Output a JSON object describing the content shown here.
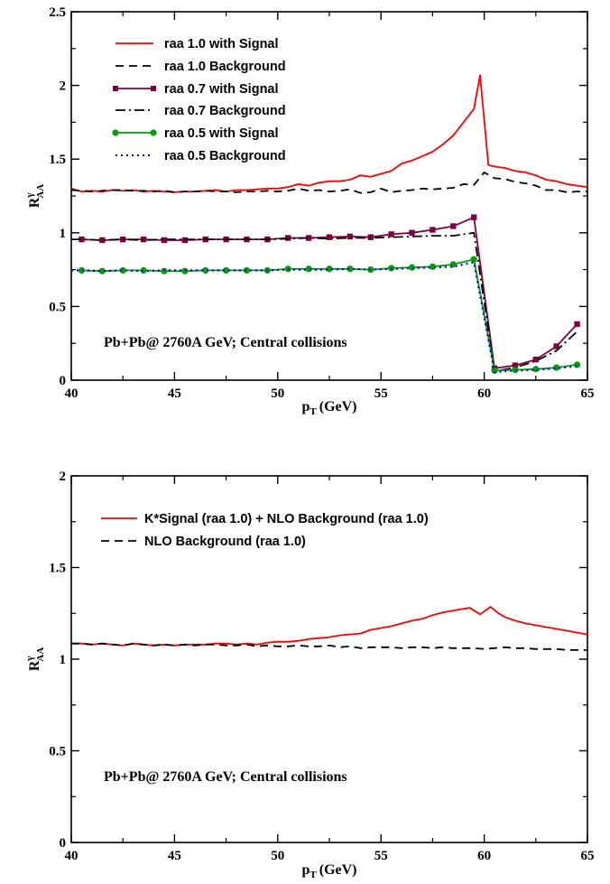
{
  "chart_data": [
    {
      "type": "line",
      "xlabel": "p",
      "xlabel_sub": "T",
      "xlabel_unit": "(GeV)",
      "ylabel": "R",
      "ylabel_sup": "γ",
      "ylabel_sub": "AA",
      "xlim": [
        40,
        65
      ],
      "ylim": [
        0,
        2.5
      ],
      "xticks": [
        40,
        45,
        50,
        55,
        60,
        65
      ],
      "xtick_labels": [
        "40",
        "45",
        "50",
        "55",
        "60",
        "65"
      ],
      "yticks": [
        0,
        0.5,
        1,
        1.5,
        2,
        2.5
      ],
      "ytick_labels": [
        "0",
        "0.5",
        "1",
        "1.5",
        "2",
        "2.5"
      ],
      "annotation": "Pb+Pb@ 2760A GeV; Central collisions",
      "legend_position": "top-left",
      "series": [
        {
          "name": "raa 1.0 with Signal",
          "color": "#ff0000",
          "dash": "solid",
          "marker": "none",
          "x": [
            40,
            40.5,
            41,
            41.5,
            42,
            42.5,
            43,
            43.5,
            44,
            44.5,
            45,
            45.5,
            46,
            46.5,
            47,
            47.5,
            48,
            48.5,
            49,
            49.5,
            50,
            50.5,
            51,
            51.5,
            52,
            52.5,
            53,
            53.5,
            54,
            54.5,
            55,
            55.5,
            56,
            56.5,
            57,
            57.5,
            58,
            58.5,
            59,
            59.5,
            59.8,
            60.2,
            60.5,
            61,
            61.5,
            62,
            62.5,
            63,
            63.5,
            64,
            64.5,
            65
          ],
          "y": [
            1.3,
            1.28,
            1.285,
            1.28,
            1.29,
            1.285,
            1.29,
            1.28,
            1.285,
            1.28,
            1.275,
            1.28,
            1.28,
            1.285,
            1.29,
            1.28,
            1.29,
            1.29,
            1.295,
            1.3,
            1.3,
            1.31,
            1.33,
            1.32,
            1.34,
            1.35,
            1.35,
            1.36,
            1.39,
            1.38,
            1.4,
            1.42,
            1.47,
            1.49,
            1.52,
            1.55,
            1.6,
            1.66,
            1.75,
            1.84,
            2.07,
            1.46,
            1.45,
            1.44,
            1.42,
            1.41,
            1.39,
            1.36,
            1.35,
            1.33,
            1.32,
            1.31
          ]
        },
        {
          "name": "raa 1.0 Background",
          "color": "#000000",
          "dash": "long",
          "marker": "none",
          "x": [
            40,
            40.5,
            41,
            41.5,
            42,
            42.5,
            43,
            43.5,
            44,
            44.5,
            45,
            45.5,
            46,
            46.5,
            47,
            47.5,
            48,
            48.5,
            49,
            49.5,
            50,
            50.5,
            51,
            51.5,
            52,
            52.5,
            53,
            53.5,
            54,
            54.5,
            55,
            55.5,
            56,
            56.5,
            57,
            57.5,
            58,
            58.5,
            59,
            59.5,
            60,
            60.5,
            61,
            61.5,
            62,
            62.5,
            63,
            63.5,
            64,
            64.5,
            65
          ],
          "y": [
            1.29,
            1.285,
            1.28,
            1.285,
            1.29,
            1.29,
            1.285,
            1.285,
            1.28,
            1.285,
            1.275,
            1.28,
            1.28,
            1.285,
            1.28,
            1.28,
            1.275,
            1.28,
            1.28,
            1.285,
            1.28,
            1.285,
            1.3,
            1.285,
            1.29,
            1.28,
            1.285,
            1.295,
            1.27,
            1.275,
            1.3,
            1.275,
            1.285,
            1.29,
            1.3,
            1.295,
            1.3,
            1.305,
            1.33,
            1.325,
            1.41,
            1.37,
            1.365,
            1.345,
            1.335,
            1.32,
            1.29,
            1.29,
            1.275,
            1.28,
            1.28
          ]
        },
        {
          "name": "raa 0.7 with Signal",
          "color": "#800040",
          "dash": "solid",
          "marker": "square",
          "x": [
            40.5,
            41.5,
            42.5,
            43.5,
            44.5,
            45.5,
            46.5,
            47.5,
            48.5,
            49.5,
            50.5,
            51.5,
            52.5,
            53.5,
            54.5,
            55.5,
            56.5,
            57.5,
            58.5,
            59.5,
            60.5,
            61.5,
            62.5,
            63.5,
            64.5
          ],
          "y": [
            0.955,
            0.95,
            0.955,
            0.955,
            0.95,
            0.95,
            0.955,
            0.955,
            0.955,
            0.955,
            0.965,
            0.965,
            0.97,
            0.975,
            0.97,
            0.99,
            1.0,
            1.02,
            1.045,
            1.105,
            0.08,
            0.1,
            0.14,
            0.23,
            0.38
          ]
        },
        {
          "name": "raa 0.7 Background",
          "color": "#000000",
          "dash": "dashdot",
          "marker": "none",
          "x": [
            40,
            40.5,
            41.5,
            42.5,
            43.5,
            44.5,
            45.5,
            46.5,
            47.5,
            48.5,
            49.5,
            50.5,
            51.5,
            52.5,
            53.5,
            54.5,
            55.5,
            56.5,
            57.5,
            58.5,
            59.5,
            60.5,
            61.5,
            62.5,
            63.5,
            64.5
          ],
          "y": [
            0.955,
            0.955,
            0.95,
            0.955,
            0.95,
            0.955,
            0.955,
            0.955,
            0.955,
            0.955,
            0.955,
            0.96,
            0.965,
            0.96,
            0.965,
            0.965,
            0.97,
            0.975,
            0.98,
            0.98,
            1.0,
            0.06,
            0.085,
            0.13,
            0.2,
            0.33
          ]
        },
        {
          "name": "raa 0.5 with Signal",
          "color": "#00a000",
          "dash": "solid",
          "marker": "circle",
          "x": [
            40.5,
            41.5,
            42.5,
            43.5,
            44.5,
            45.5,
            46.5,
            47.5,
            48.5,
            49.5,
            50.5,
            51.5,
            52.5,
            53.5,
            54.5,
            55.5,
            56.5,
            57.5,
            58.5,
            59.5,
            60.5,
            61.5,
            62.5,
            63.5,
            64.5
          ],
          "y": [
            0.745,
            0.74,
            0.745,
            0.745,
            0.74,
            0.74,
            0.745,
            0.745,
            0.745,
            0.745,
            0.755,
            0.755,
            0.755,
            0.755,
            0.75,
            0.76,
            0.765,
            0.77,
            0.785,
            0.82,
            0.065,
            0.07,
            0.075,
            0.085,
            0.105
          ]
        },
        {
          "name": "raa 0.5 Background",
          "color": "#0000ff",
          "dash": "dotted",
          "marker": "none",
          "x": [
            40,
            40.5,
            41.5,
            42.5,
            43.5,
            44.5,
            45.5,
            46.5,
            47.5,
            48.5,
            49.5,
            50.5,
            51.5,
            52.5,
            53.5,
            54.5,
            55.5,
            56.5,
            57.5,
            58.5,
            59.5,
            60.5,
            61.5,
            62.5,
            63.5,
            64.5
          ],
          "y": [
            0.745,
            0.745,
            0.74,
            0.745,
            0.74,
            0.745,
            0.745,
            0.745,
            0.745,
            0.745,
            0.745,
            0.75,
            0.75,
            0.75,
            0.755,
            0.75,
            0.755,
            0.76,
            0.765,
            0.77,
            0.8,
            0.055,
            0.065,
            0.07,
            0.08,
            0.095
          ]
        }
      ]
    },
    {
      "type": "line",
      "xlabel": "p",
      "xlabel_sub": "T",
      "xlabel_unit": "(GeV)",
      "ylabel": "R",
      "ylabel_sup": "γ",
      "ylabel_sub": "AA",
      "xlim": [
        40,
        65
      ],
      "ylim": [
        0,
        2
      ],
      "xticks": [
        40,
        45,
        50,
        55,
        60,
        65
      ],
      "xtick_labels": [
        "40",
        "45",
        "50",
        "55",
        "60",
        "65"
      ],
      "yticks": [
        0,
        0.5,
        1,
        1.5,
        2
      ],
      "ytick_labels": [
        "0",
        "0.5",
        "1",
        "1.5",
        "2"
      ],
      "annotation": "Pb+Pb@ 2760A GeV; Central collisions",
      "legend_position": "top-left",
      "series": [
        {
          "name": "K*Signal (raa 1.0) + NLO Background (raa 1.0)",
          "color": "#ff0000",
          "dash": "solid",
          "marker": "none",
          "x": [
            40,
            40.5,
            41,
            41.5,
            42,
            42.5,
            43,
            43.5,
            44,
            44.5,
            45,
            45.5,
            46,
            46.5,
            47,
            47.5,
            48,
            48.5,
            49,
            49.5,
            50,
            50.5,
            51,
            51.5,
            52,
            52.5,
            53,
            53.5,
            54,
            54.5,
            55,
            55.5,
            56,
            56.5,
            57,
            57.5,
            58,
            58.5,
            59,
            59.3,
            59.8,
            60.3,
            60.7,
            61,
            61.5,
            62,
            62.5,
            63,
            63.5,
            64,
            64.5,
            65
          ],
          "y": [
            1.085,
            1.085,
            1.08,
            1.085,
            1.08,
            1.075,
            1.085,
            1.08,
            1.075,
            1.08,
            1.075,
            1.08,
            1.08,
            1.08,
            1.085,
            1.085,
            1.08,
            1.085,
            1.08,
            1.09,
            1.095,
            1.095,
            1.1,
            1.11,
            1.115,
            1.12,
            1.13,
            1.135,
            1.14,
            1.16,
            1.17,
            1.18,
            1.195,
            1.21,
            1.22,
            1.24,
            1.255,
            1.265,
            1.275,
            1.28,
            1.245,
            1.285,
            1.25,
            1.23,
            1.21,
            1.195,
            1.185,
            1.175,
            1.165,
            1.155,
            1.145,
            1.135
          ]
        },
        {
          "name": "NLO Background (raa 1.0)",
          "color": "#000000",
          "dash": "long",
          "marker": "none",
          "x": [
            40,
            40.5,
            41,
            41.5,
            42,
            42.5,
            43,
            43.5,
            44,
            44.5,
            45,
            45.5,
            46,
            46.5,
            47,
            47.5,
            48,
            48.5,
            49,
            49.5,
            50,
            50.5,
            51,
            51.5,
            52,
            52.5,
            53,
            53.5,
            54,
            54.5,
            55,
            55.5,
            56,
            56.5,
            57,
            57.5,
            58,
            58.5,
            59,
            59.5,
            60,
            60.5,
            61,
            61.5,
            62,
            62.5,
            63,
            63.5,
            64,
            64.5,
            65
          ],
          "y": [
            1.085,
            1.085,
            1.08,
            1.085,
            1.08,
            1.075,
            1.085,
            1.08,
            1.075,
            1.08,
            1.075,
            1.08,
            1.075,
            1.08,
            1.08,
            1.075,
            1.075,
            1.08,
            1.07,
            1.075,
            1.07,
            1.07,
            1.075,
            1.07,
            1.07,
            1.075,
            1.065,
            1.07,
            1.06,
            1.065,
            1.065,
            1.065,
            1.06,
            1.065,
            1.065,
            1.06,
            1.065,
            1.06,
            1.06,
            1.06,
            1.055,
            1.06,
            1.065,
            1.06,
            1.06,
            1.055,
            1.055,
            1.055,
            1.05,
            1.05,
            1.05
          ]
        }
      ]
    }
  ]
}
